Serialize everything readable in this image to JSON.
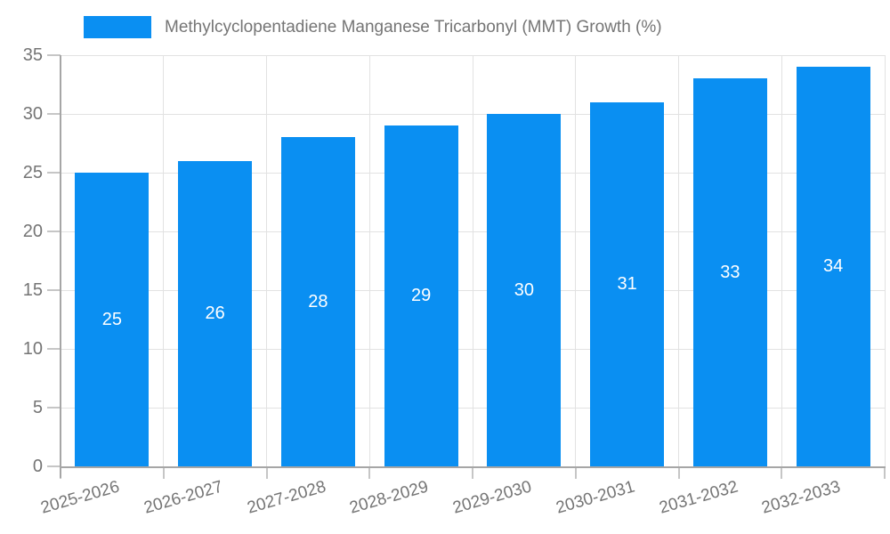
{
  "chart_data": {
    "type": "bar",
    "title": "Methylcyclopentadiene Manganese Tricarbonyl (MMT) Growth (%)",
    "categories": [
      "2025-2026",
      "2026-2027",
      "2027-2028",
      "2028-2029",
      "2029-2030",
      "2030-2031",
      "2031-2032",
      "2032-2033"
    ],
    "values": [
      25,
      26,
      28,
      29,
      30,
      31,
      33,
      34
    ],
    "xlabel": "",
    "ylabel": "",
    "ylim": [
      0,
      35
    ],
    "yticks": [
      0,
      5,
      10,
      15,
      20,
      25,
      30,
      35
    ],
    "grid": true,
    "legend_position": "top-left",
    "value_label_position": "inside-center",
    "x_label_rotation_deg": -16,
    "colors": {
      "bar": "#0A8FF2",
      "value_label": "#FFFFFF",
      "axis_text": "#757575",
      "title_text": "#757575",
      "gridline": "#E2E2E2",
      "axis_line": "#A6A6A6",
      "tick": "#C6C6C6",
      "background": "#FFFFFF"
    }
  }
}
